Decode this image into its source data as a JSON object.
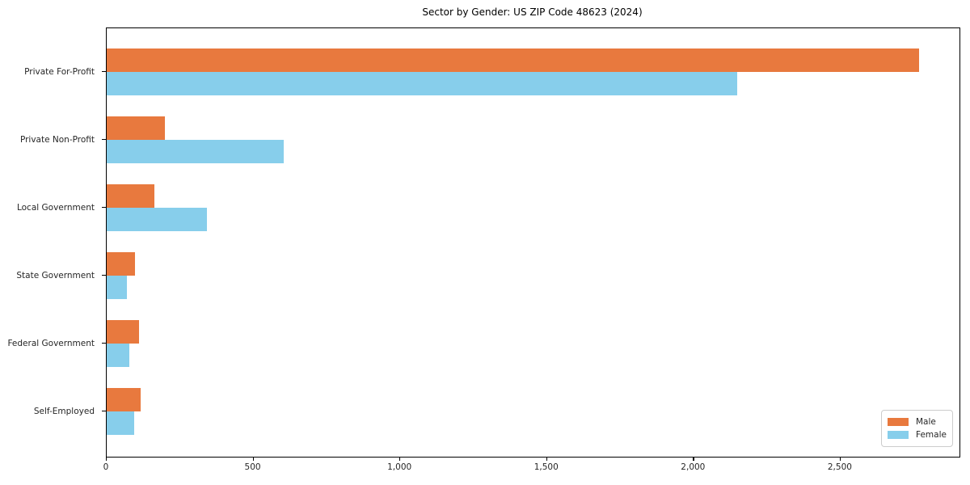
{
  "chart_data": {
    "type": "bar",
    "orientation": "horizontal",
    "title": "Sector by Gender: US ZIP Code 48623 (2024)",
    "categories": [
      "Private For-Profit",
      "Private Non-Profit",
      "Local Government",
      "State Government",
      "Federal Government",
      "Self-Employed"
    ],
    "series": [
      {
        "name": "Male",
        "color": "#e8793e",
        "values": [
          2767,
          199,
          162,
          95,
          111,
          116
        ]
      },
      {
        "name": "Female",
        "color": "#87ceeb",
        "values": [
          2147,
          604,
          341,
          70,
          76,
          93
        ]
      }
    ],
    "xlabel": "",
    "ylabel": "",
    "xlim": [
      0,
      2905
    ],
    "xticks": [
      0,
      500,
      1000,
      1500,
      2000,
      2500
    ],
    "xtick_labels": [
      "0",
      "500",
      "1,000",
      "1,500",
      "2,000",
      "2,500"
    ],
    "grid": false,
    "legend": {
      "position": "lower right"
    },
    "colors": {
      "male": "#e8793e",
      "female": "#87ceeb",
      "spine": "#000000",
      "background": "#ffffff"
    }
  }
}
